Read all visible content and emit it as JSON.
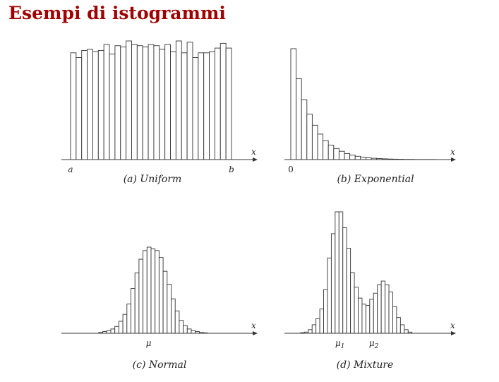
{
  "page": {
    "title": "Esempi di istogrammi"
  },
  "chart_data": [
    {
      "type": "bar",
      "caption": "(a) Uniform",
      "xlabel": "x",
      "ticks": [
        {
          "label": "a",
          "at": 0
        },
        {
          "label": "b",
          "at": 1
        }
      ],
      "ylim": [
        0,
        1
      ],
      "values": [
        0.9,
        0.86,
        0.92,
        0.93,
        0.91,
        0.92,
        0.97,
        0.89,
        0.96,
        0.95,
        1.0,
        0.97,
        0.96,
        0.95,
        0.97,
        0.96,
        0.93,
        0.97,
        0.91,
        1.0,
        0.9,
        0.99,
        0.86,
        0.9,
        0.9,
        0.91,
        0.94,
        0.98,
        0.94
      ]
    },
    {
      "type": "bar",
      "caption": "(b) Exponential",
      "xlabel": "x",
      "ticks": [
        {
          "label": "0",
          "at": 0
        }
      ],
      "ylim": [
        0,
        1
      ],
      "values": [
        1.0,
        0.73,
        0.54,
        0.41,
        0.31,
        0.23,
        0.17,
        0.13,
        0.1,
        0.075,
        0.055,
        0.04,
        0.03,
        0.022,
        0.016,
        0.012,
        0.009,
        0.007,
        0.005,
        0.004,
        0.003,
        0.002,
        0.002,
        0.001,
        0.001,
        0.001,
        0.001,
        0,
        0,
        0
      ]
    },
    {
      "type": "bar",
      "caption": "(c) Normal",
      "xlabel": "x",
      "ticks": [
        {
          "label": "μ",
          "sub": "",
          "at": 0.485
        }
      ],
      "ylim": [
        0,
        1
      ],
      "values": [
        0,
        0,
        0,
        0,
        0,
        0,
        0,
        0.01,
        0.02,
        0.03,
        0.05,
        0.08,
        0.14,
        0.22,
        0.34,
        0.52,
        0.7,
        0.86,
        0.96,
        1.0,
        0.98,
        0.96,
        0.88,
        0.72,
        0.57,
        0.4,
        0.26,
        0.15,
        0.09,
        0.05,
        0.03,
        0.02,
        0.01,
        0.005,
        0,
        0,
        0,
        0,
        0,
        0
      ]
    },
    {
      "type": "bar",
      "caption": "(d) Mixture",
      "xlabel": "x",
      "ticks": [
        {
          "label": "μ",
          "sub": "1",
          "at": 0.36
        },
        {
          "label": "μ",
          "sub": "2",
          "at": 0.62
        }
      ],
      "ylim": [
        0,
        1
      ],
      "values": [
        0,
        0,
        0.005,
        0.01,
        0.03,
        0.07,
        0.12,
        0.2,
        0.36,
        0.62,
        0.82,
        1.0,
        1.0,
        0.87,
        0.7,
        0.5,
        0.38,
        0.29,
        0.24,
        0.23,
        0.28,
        0.33,
        0.4,
        0.43,
        0.4,
        0.34,
        0.22,
        0.13,
        0.07,
        0.03,
        0.01,
        0,
        0,
        0
      ]
    }
  ]
}
